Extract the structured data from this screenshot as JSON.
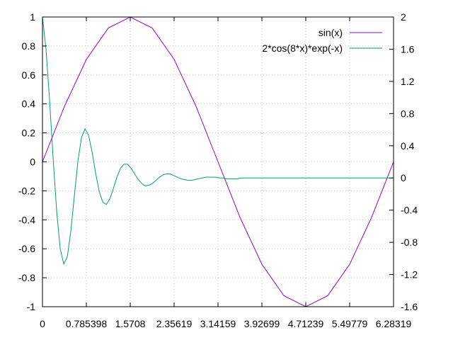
{
  "chart_data": {
    "type": "line",
    "title": "",
    "xlabel": "",
    "ylabel": "",
    "y2label": "",
    "xlim": [
      0,
      6.283185
    ],
    "ylim": [
      -1,
      1
    ],
    "y2lim": [
      -1.6,
      2
    ],
    "grid": true,
    "legend_position": "top-right",
    "x_ticks": [
      {
        "value": 0,
        "label": "0"
      },
      {
        "value": 0.785398,
        "label": "0.785398"
      },
      {
        "value": 1.5708,
        "label": "1.5708"
      },
      {
        "value": 2.35619,
        "label": "2.35619"
      },
      {
        "value": 3.14159,
        "label": "3.14159"
      },
      {
        "value": 3.92699,
        "label": "3.92699"
      },
      {
        "value": 4.71239,
        "label": "4.71239"
      },
      {
        "value": 5.49779,
        "label": "5.49779"
      },
      {
        "value": 6.28319,
        "label": "6.28319"
      }
    ],
    "y_ticks": [
      {
        "value": 1,
        "label": "1"
      },
      {
        "value": 0.8,
        "label": "0.8"
      },
      {
        "value": 0.6,
        "label": "0.6"
      },
      {
        "value": 0.4,
        "label": "0.4"
      },
      {
        "value": 0.2,
        "label": "0.2"
      },
      {
        "value": 0,
        "label": "0"
      },
      {
        "value": -0.2,
        "label": "-0.2"
      },
      {
        "value": -0.4,
        "label": "-0.4"
      },
      {
        "value": -0.6,
        "label": "-0.6"
      },
      {
        "value": -0.8,
        "label": "-0.8"
      },
      {
        "value": -1,
        "label": "-1"
      }
    ],
    "y2_ticks": [
      {
        "value": 2,
        "label": "2"
      },
      {
        "value": 1.6,
        "label": "1.6"
      },
      {
        "value": 1.2,
        "label": "1.2"
      },
      {
        "value": 0.8,
        "label": "0.8"
      },
      {
        "value": 0.4,
        "label": "0.4"
      },
      {
        "value": 0,
        "label": "0"
      },
      {
        "value": -0.4,
        "label": "-0.4"
      },
      {
        "value": -0.8,
        "label": "-0.8"
      },
      {
        "value": -1.2,
        "label": "-1.2"
      },
      {
        "value": -1.6,
        "label": "-1.6"
      }
    ],
    "series": [
      {
        "name": "sin(x)",
        "axis": "y1",
        "color": "#9400d3",
        "x": [
          0,
          0.3927,
          0.7854,
          1.1781,
          1.5708,
          1.9635,
          2.3562,
          2.7489,
          3.1416,
          3.5343,
          3.927,
          4.3197,
          4.7124,
          5.1051,
          5.4978,
          5.8905,
          6.2832
        ],
        "y": [
          0,
          0.3827,
          0.7071,
          0.9239,
          1,
          0.9239,
          0.7071,
          0.3827,
          0,
          -0.3827,
          -0.7071,
          -0.9239,
          -1,
          -0.9239,
          -0.7071,
          -0.3827,
          0
        ]
      },
      {
        "name": "2*cos(8*x)*exp(-x)",
        "axis": "y2",
        "color": "#009e73",
        "x": [
          0,
          0.0635,
          0.1269,
          0.1904,
          0.2539,
          0.3173,
          0.3808,
          0.4443,
          0.5077,
          0.5712,
          0.6347,
          0.6981,
          0.7616,
          0.8251,
          0.8885,
          0.952,
          1.0155,
          1.0789,
          1.1424,
          1.2059,
          1.2693,
          1.3328,
          1.3963,
          1.4597,
          1.5232,
          1.5867,
          1.6501,
          1.7136,
          1.7771,
          1.8405,
          1.904,
          1.9675,
          2.0309,
          2.0944,
          2.1579,
          2.2213,
          2.2848,
          2.3483,
          2.4117,
          2.4752,
          2.5387,
          2.6021,
          2.6656,
          2.7291,
          2.7925,
          2.856,
          2.9195,
          2.9829,
          3.0464,
          3.1099,
          3.1733,
          3.2368,
          3.3003,
          3.3637,
          3.4272,
          3.4907,
          3.5541,
          3.6176,
          3.6811,
          3.7445,
          3.808,
          3.8715,
          3.9349,
          3.9984,
          4.0619,
          4.1253,
          4.1888,
          4.2523,
          4.3157,
          4.3792,
          4.4427,
          4.5061,
          4.5696,
          4.6331,
          4.6965,
          4.76,
          4.8235,
          4.8869,
          4.9504,
          5.0139,
          5.0773,
          5.1408,
          5.2043,
          5.2677,
          5.3312,
          5.3947,
          5.4581,
          5.5216,
          5.5851,
          5.6485,
          5.712,
          5.7755,
          5.8389,
          5.9024,
          5.9659,
          6.0293,
          6.0928,
          6.1563,
          6.2197,
          6.2832
        ],
        "y": [
          2,
          1.6,
          0.97,
          0.25,
          -0.41,
          -0.88,
          -1.07,
          -0.98,
          -0.66,
          -0.22,
          0.21,
          0.5,
          0.61,
          0.53,
          0.32,
          0.06,
          -0.17,
          -0.3,
          -0.33,
          -0.26,
          -0.13,
          0.01,
          0.12,
          0.17,
          0.17,
          0.12,
          0.05,
          -0.02,
          -0.07,
          -0.1,
          -0.09,
          -0.07,
          -0.03,
          0.01,
          0.04,
          0.05,
          0.05,
          0.03,
          0.01,
          -0.01,
          -0.02,
          -0.03,
          -0.03,
          -0.02,
          -0.01,
          0,
          0.01,
          0.01,
          0.01,
          0.01,
          0,
          0,
          -0.01,
          -0.01,
          -0.01,
          -0.01,
          0,
          0,
          0,
          0,
          0,
          0,
          0,
          0,
          0,
          0,
          0,
          0,
          0,
          0,
          0,
          0,
          0,
          0,
          0,
          0,
          0,
          0,
          0,
          0,
          0,
          0,
          0,
          0,
          0,
          0,
          0,
          0,
          0,
          0,
          0,
          0,
          0,
          0,
          0,
          0,
          0,
          0,
          0,
          0
        ]
      }
    ]
  }
}
